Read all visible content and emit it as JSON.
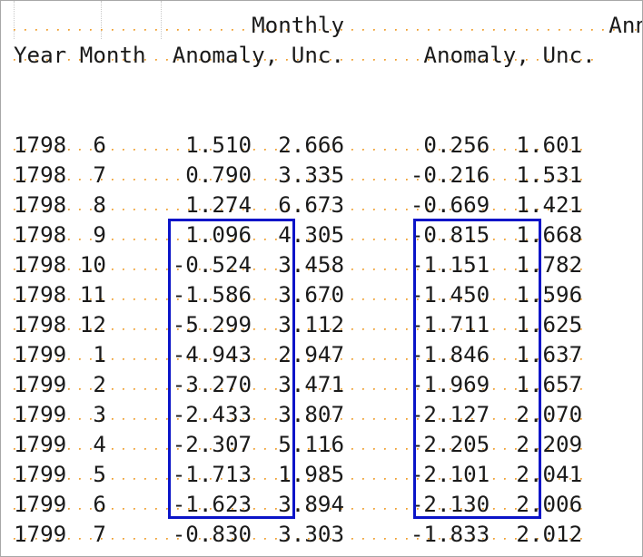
{
  "header": {
    "line1": "                  Monthly                    Annual",
    "line2": "Year Month  Anomaly, Unc.      Anomaly, Unc."
  },
  "rows": [
    "1798  6      1.510  2.666      0.256  1.601",
    "1798  7      0.790  3.335     -0.216  1.531",
    "1798  8      1.274  6.673     -0.669  1.421",
    "1798  9      1.096  4.305     -0.815  1.668",
    "1798 10     -0.524  3.458     -1.151  1.782",
    "1798 11     -1.586  3.670     -1.450  1.596",
    "1798 12     -5.299  3.112     -1.711  1.625",
    "1799  1     -4.943  2.947     -1.846  1.637",
    "1799  2     -3.270  3.471     -1.969  1.657",
    "1799  3     -2.433  3.807     -2.127  2.070",
    "1799  4     -2.307  5.116     -2.205  2.209",
    "1799  5     -1.713  1.985     -2.101  2.041",
    "1799  6     -1.623  3.894     -2.130  2.006",
    "1799  7     -0.830  3.303     -1.833  2.012"
  ],
  "colors": {
    "highlight": "#0a14c8",
    "whitespace_dots": "#f0a030",
    "text": "#1a1a1a"
  }
}
